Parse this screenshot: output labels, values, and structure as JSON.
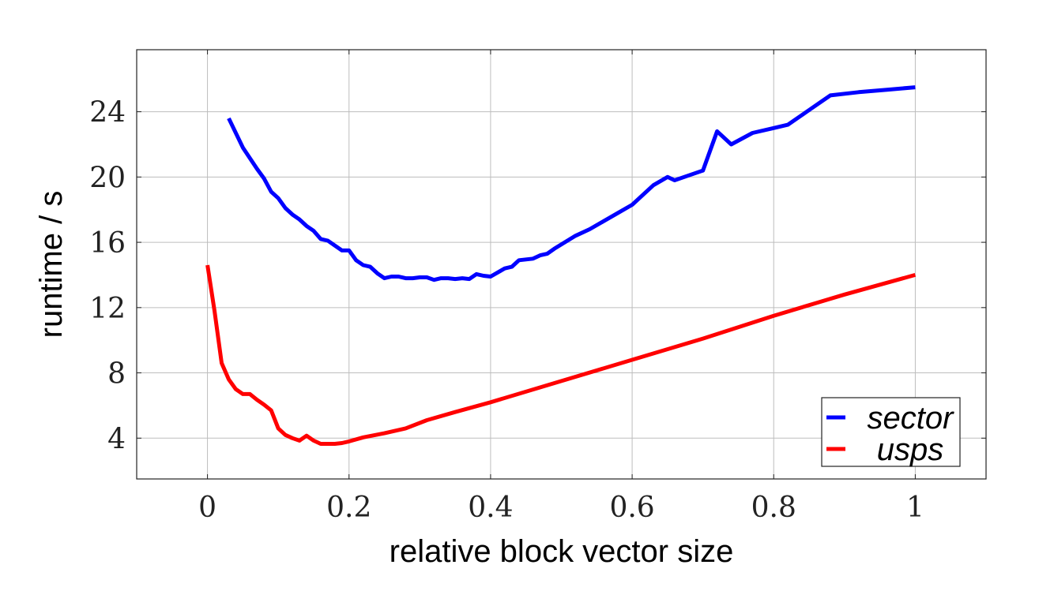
{
  "chart_data": {
    "type": "line",
    "xlabel": "relative block vector size",
    "ylabel": "runtime / s",
    "xlim": [
      -0.1,
      1.1
    ],
    "ylim": [
      1.5,
      27.8
    ],
    "xticks": [
      0,
      0.2,
      0.4,
      0.6,
      0.8,
      1
    ],
    "xtick_labels": [
      "0",
      "0.2",
      "0.4",
      "0.6",
      "0.8",
      "1"
    ],
    "yticks": [
      4,
      8,
      12,
      16,
      20,
      24
    ],
    "ytick_labels": [
      "4",
      "8",
      "12",
      "16",
      "20",
      "24"
    ],
    "grid": true,
    "legend_position": "bottom-right",
    "series": [
      {
        "name": "sector",
        "color": "#0000ff",
        "x": [
          0.03,
          0.05,
          0.07,
          0.08,
          0.09,
          0.1,
          0.11,
          0.12,
          0.13,
          0.14,
          0.15,
          0.16,
          0.17,
          0.18,
          0.19,
          0.2,
          0.21,
          0.22,
          0.23,
          0.24,
          0.25,
          0.26,
          0.27,
          0.28,
          0.29,
          0.3,
          0.31,
          0.32,
          0.33,
          0.34,
          0.35,
          0.36,
          0.37,
          0.38,
          0.39,
          0.4,
          0.42,
          0.43,
          0.44,
          0.46,
          0.47,
          0.48,
          0.49,
          0.52,
          0.54,
          0.56,
          0.58,
          0.6,
          0.63,
          0.65,
          0.66,
          0.68,
          0.7,
          0.72,
          0.74,
          0.77,
          0.8,
          0.82,
          0.85,
          0.88,
          0.92,
          0.96,
          1.0
        ],
        "y": [
          23.6,
          21.8,
          20.5,
          19.9,
          19.1,
          18.7,
          18.1,
          17.7,
          17.4,
          17.0,
          16.7,
          16.2,
          16.1,
          15.8,
          15.5,
          15.5,
          14.9,
          14.6,
          14.5,
          14.1,
          13.8,
          13.9,
          13.9,
          13.8,
          13.8,
          13.85,
          13.85,
          13.7,
          13.8,
          13.8,
          13.75,
          13.8,
          13.75,
          14.05,
          13.95,
          13.9,
          14.4,
          14.5,
          14.9,
          15.0,
          15.2,
          15.3,
          15.6,
          16.4,
          16.8,
          17.3,
          17.8,
          18.3,
          19.5,
          20.0,
          19.8,
          20.1,
          20.4,
          22.8,
          22.0,
          22.7,
          23.0,
          23.2,
          24.1,
          25.0,
          25.2,
          25.35,
          25.5
        ]
      },
      {
        "name": "usps",
        "color": "#ff0000",
        "x": [
          0.0,
          0.01,
          0.02,
          0.03,
          0.04,
          0.05,
          0.06,
          0.07,
          0.08,
          0.09,
          0.1,
          0.11,
          0.12,
          0.13,
          0.14,
          0.15,
          0.16,
          0.17,
          0.18,
          0.19,
          0.2,
          0.22,
          0.25,
          0.28,
          0.31,
          0.35,
          0.4,
          0.5,
          0.6,
          0.7,
          0.8,
          0.9,
          1.0
        ],
        "y": [
          14.6,
          11.8,
          8.6,
          7.6,
          7.0,
          6.7,
          6.7,
          6.35,
          6.05,
          5.7,
          4.6,
          4.2,
          4.0,
          3.85,
          4.15,
          3.85,
          3.65,
          3.65,
          3.65,
          3.7,
          3.8,
          4.05,
          4.3,
          4.6,
          5.1,
          5.6,
          6.2,
          7.5,
          8.8,
          10.1,
          11.5,
          12.8,
          14.0
        ]
      }
    ]
  }
}
